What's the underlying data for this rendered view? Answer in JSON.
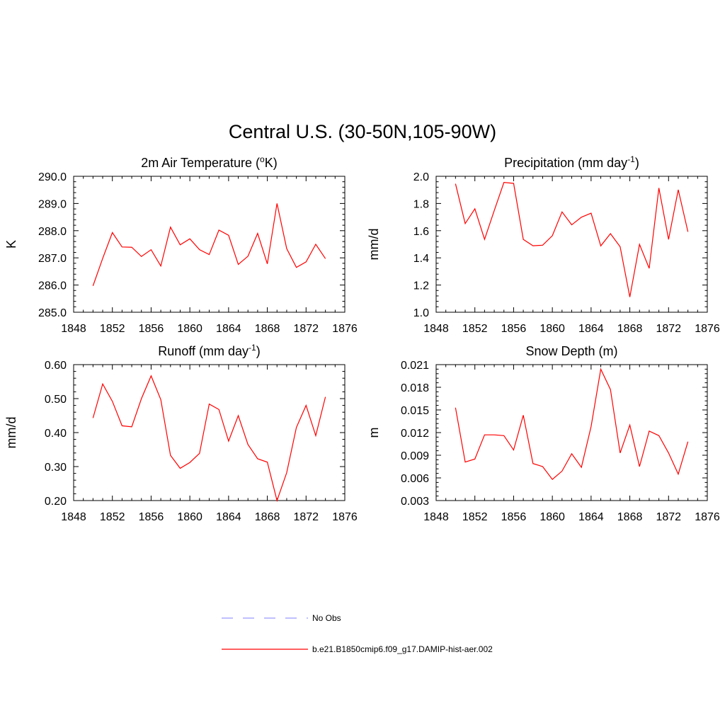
{
  "figure": {
    "title": "Central U.S. (30-50N,105-90W)"
  },
  "legend": {
    "entries": [
      {
        "label": "No Obs",
        "color": "#9999ff",
        "dashed": true
      },
      {
        "label": "b.e21.B1850cmip6.f09_g17.DAMIP-hist-aer.002",
        "color": "#ff0000",
        "dashed": false
      }
    ]
  },
  "chart_data": [
    {
      "type": "line",
      "title": "2m Air Temperature (oK)",
      "title_parts": {
        "pre": "2m Air Temperature (",
        "sup": "o",
        "post": "K)"
      },
      "ylabel": "K",
      "xlim": [
        1848,
        1876
      ],
      "ylim": [
        285.0,
        290.0
      ],
      "xticks": [
        1848,
        1852,
        1856,
        1860,
        1864,
        1868,
        1872,
        1876
      ],
      "yticks": [
        285.0,
        286.0,
        287.0,
        288.0,
        289.0,
        290.0
      ],
      "ytick_labels": [
        "285.0",
        "286.0",
        "287.0",
        "288.0",
        "289.0",
        "290.0"
      ],
      "series": [
        {
          "color": "#ff0000",
          "x": [
            1850,
            1851,
            1852,
            1853,
            1854,
            1855,
            1856,
            1857,
            1858,
            1859,
            1860,
            1861,
            1862,
            1863,
            1864,
            1865,
            1866,
            1867,
            1868,
            1869,
            1870,
            1871,
            1872,
            1873,
            1874
          ],
          "values": [
            285.97,
            286.98,
            287.93,
            287.4,
            287.39,
            287.05,
            287.3,
            286.7,
            288.13,
            287.48,
            287.7,
            287.3,
            287.12,
            288.02,
            287.83,
            286.76,
            287.06,
            287.9,
            286.78,
            289.0,
            287.34,
            286.65,
            286.85,
            287.5,
            286.97
          ]
        }
      ]
    },
    {
      "type": "line",
      "title": "Precipitation (mm day-1)",
      "title_parts": {
        "pre": "Precipitation (mm day",
        "sup": "-1",
        "post": ")"
      },
      "ylabel": "mm/d",
      "xlim": [
        1848,
        1876
      ],
      "ylim": [
        1.0,
        2.0
      ],
      "xticks": [
        1848,
        1852,
        1856,
        1860,
        1864,
        1868,
        1872,
        1876
      ],
      "yticks": [
        1.0,
        1.2,
        1.4,
        1.6,
        1.8,
        2.0
      ],
      "ytick_labels": [
        "1.0",
        "1.2",
        "1.4",
        "1.6",
        "1.8",
        "2.0"
      ],
      "series": [
        {
          "color": "#ff0000",
          "x": [
            1850,
            1851,
            1852,
            1853,
            1854,
            1855,
            1856,
            1857,
            1858,
            1859,
            1860,
            1861,
            1862,
            1863,
            1864,
            1865,
            1866,
            1867,
            1868,
            1869,
            1870,
            1871,
            1872,
            1873,
            1874
          ],
          "values": [
            1.945,
            1.652,
            1.761,
            1.536,
            1.748,
            1.955,
            1.948,
            1.536,
            1.489,
            1.493,
            1.563,
            1.738,
            1.643,
            1.699,
            1.729,
            1.488,
            1.578,
            1.482,
            1.112,
            1.499,
            1.323,
            1.914,
            1.536,
            1.901,
            1.592
          ]
        }
      ]
    },
    {
      "type": "line",
      "title": "Runoff (mm day-1)",
      "title_parts": {
        "pre": "Runoff (mm day",
        "sup": "-1",
        "post": ")"
      },
      "ylabel": "mm/d",
      "xlim": [
        1848,
        1876
      ],
      "ylim": [
        0.2,
        0.6
      ],
      "xticks": [
        1848,
        1852,
        1856,
        1860,
        1864,
        1868,
        1872,
        1876
      ],
      "yticks": [
        0.2,
        0.3,
        0.4,
        0.5,
        0.6
      ],
      "ytick_labels": [
        "0.20",
        "0.30",
        "0.40",
        "0.50",
        "0.60"
      ],
      "series": [
        {
          "color": "#ff0000",
          "x": [
            1850,
            1851,
            1852,
            1853,
            1854,
            1855,
            1856,
            1857,
            1858,
            1859,
            1860,
            1861,
            1862,
            1863,
            1864,
            1865,
            1866,
            1867,
            1868,
            1869,
            1870,
            1871,
            1872,
            1873,
            1874
          ],
          "values": [
            0.443,
            0.543,
            0.492,
            0.42,
            0.417,
            0.5,
            0.567,
            0.497,
            0.333,
            0.295,
            0.312,
            0.339,
            0.484,
            0.468,
            0.375,
            0.45,
            0.365,
            0.323,
            0.313,
            0.2,
            0.282,
            0.415,
            0.48,
            0.391,
            0.505
          ]
        }
      ]
    },
    {
      "type": "line",
      "title": "Snow Depth (m)",
      "title_parts": {
        "pre": "Snow Depth (m)",
        "sup": "",
        "post": ""
      },
      "ylabel": "m",
      "xlim": [
        1848,
        1876
      ],
      "ylim": [
        0.003,
        0.021
      ],
      "xticks": [
        1848,
        1852,
        1856,
        1860,
        1864,
        1868,
        1872,
        1876
      ],
      "yticks": [
        0.003,
        0.006,
        0.009,
        0.012,
        0.015,
        0.018,
        0.021
      ],
      "ytick_labels": [
        "0.003",
        "0.006",
        "0.009",
        "0.012",
        "0.015",
        "0.018",
        "0.021"
      ],
      "series": [
        {
          "color": "#ff0000",
          "x": [
            1850,
            1851,
            1852,
            1853,
            1854,
            1855,
            1856,
            1857,
            1858,
            1859,
            1860,
            1861,
            1862,
            1863,
            1864,
            1865,
            1866,
            1867,
            1868,
            1869,
            1870,
            1871,
            1872,
            1873,
            1874
          ],
          "values": [
            0.0153,
            0.0081,
            0.0085,
            0.0117,
            0.0117,
            0.0116,
            0.0097,
            0.0143,
            0.0079,
            0.0075,
            0.0058,
            0.0069,
            0.0092,
            0.0074,
            0.0128,
            0.0204,
            0.0177,
            0.0093,
            0.013,
            0.0075,
            0.0122,
            0.0116,
            0.0093,
            0.0065,
            0.0108
          ]
        }
      ]
    }
  ]
}
